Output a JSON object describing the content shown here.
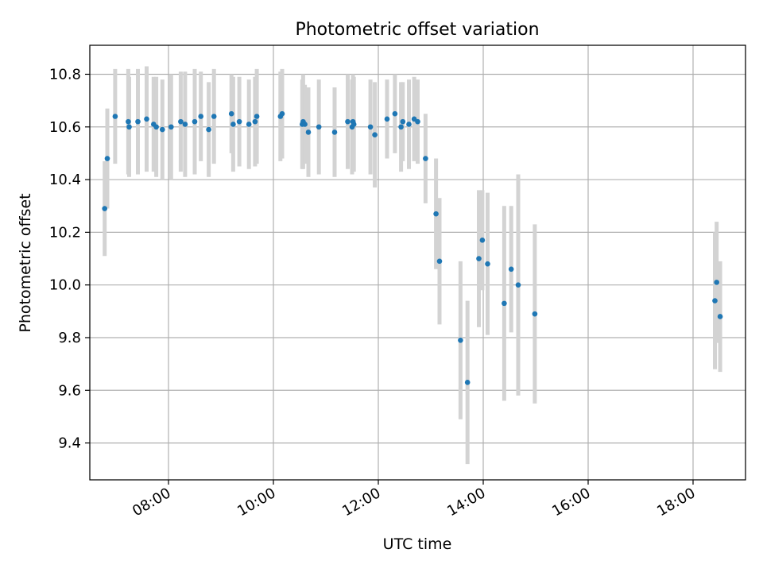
{
  "chart_data": {
    "type": "scatter",
    "title": "Photometric offset variation",
    "xlabel": "UTC time",
    "ylabel": "Photometric offset",
    "xlim": [
      "06:30",
      "19:00"
    ],
    "ylim": [
      9.26,
      10.91
    ],
    "x_ticks": [
      "08:00",
      "10:00",
      "12:00",
      "14:00",
      "16:00",
      "18:00"
    ],
    "y_ticks": [
      "9.4",
      "9.6",
      "9.8",
      "10.0",
      "10.2",
      "10.4",
      "10.6",
      "10.8"
    ],
    "grid": true,
    "colors": {
      "point": "#1f77b4",
      "errorbar": "#d3d3d3",
      "grid": "#b0b0b0"
    },
    "series": [
      {
        "x": [
          "06:47",
          "06:50",
          "06:59",
          "07:14",
          "07:15",
          "07:25",
          "07:35",
          "07:43",
          "07:46",
          "07:53",
          "08:03",
          "08:14",
          "08:19",
          "08:30",
          "08:37",
          "08:46",
          "08:52",
          "09:12",
          "09:14",
          "09:21",
          "09:32",
          "09:39",
          "09:41",
          "10:08",
          "10:10",
          "10:33",
          "10:34",
          "10:36",
          "10:40",
          "10:52",
          "11:10",
          "11:25",
          "11:30",
          "11:31",
          "11:32",
          "11:51",
          "11:56",
          "12:10",
          "12:19",
          "12:26",
          "12:28",
          "12:35",
          "12:41",
          "12:45",
          "12:54",
          "13:06",
          "13:10",
          "13:34",
          "13:42",
          "13:55",
          "13:59",
          "14:05",
          "14:24",
          "14:32",
          "14:40",
          "14:59",
          "18:25",
          "18:27",
          "18:31"
        ],
        "y": [
          10.29,
          10.48,
          10.64,
          10.62,
          10.6,
          10.62,
          10.63,
          10.61,
          10.6,
          10.59,
          10.6,
          10.62,
          10.61,
          10.62,
          10.64,
          10.59,
          10.64,
          10.65,
          10.61,
          10.62,
          10.61,
          10.62,
          10.64,
          10.64,
          10.65,
          10.61,
          10.62,
          10.61,
          10.58,
          10.6,
          10.58,
          10.62,
          10.6,
          10.62,
          10.61,
          10.6,
          10.57,
          10.63,
          10.65,
          10.6,
          10.62,
          10.61,
          10.63,
          10.62,
          10.48,
          10.27,
          10.09,
          9.79,
          9.63,
          10.1,
          10.17,
          10.08,
          9.93,
          10.06,
          10.0,
          9.89,
          9.94,
          10.01,
          9.88
        ],
        "yerr": [
          0.18,
          0.19,
          0.18,
          0.2,
          0.19,
          0.2,
          0.2,
          0.18,
          0.19,
          0.19,
          0.2,
          0.19,
          0.2,
          0.2,
          0.17,
          0.18,
          0.18,
          0.15,
          0.18,
          0.17,
          0.17,
          0.17,
          0.18,
          0.17,
          0.17,
          0.17,
          0.18,
          0.15,
          0.17,
          0.18,
          0.17,
          0.18,
          0.18,
          0.18,
          0.18,
          0.18,
          0.2,
          0.15,
          0.15,
          0.17,
          0.15,
          0.17,
          0.16,
          0.16,
          0.17,
          0.21,
          0.24,
          0.3,
          0.31,
          0.26,
          0.19,
          0.27,
          0.37,
          0.24,
          0.42,
          0.34,
          0.26,
          0.23,
          0.21
        ]
      }
    ]
  }
}
